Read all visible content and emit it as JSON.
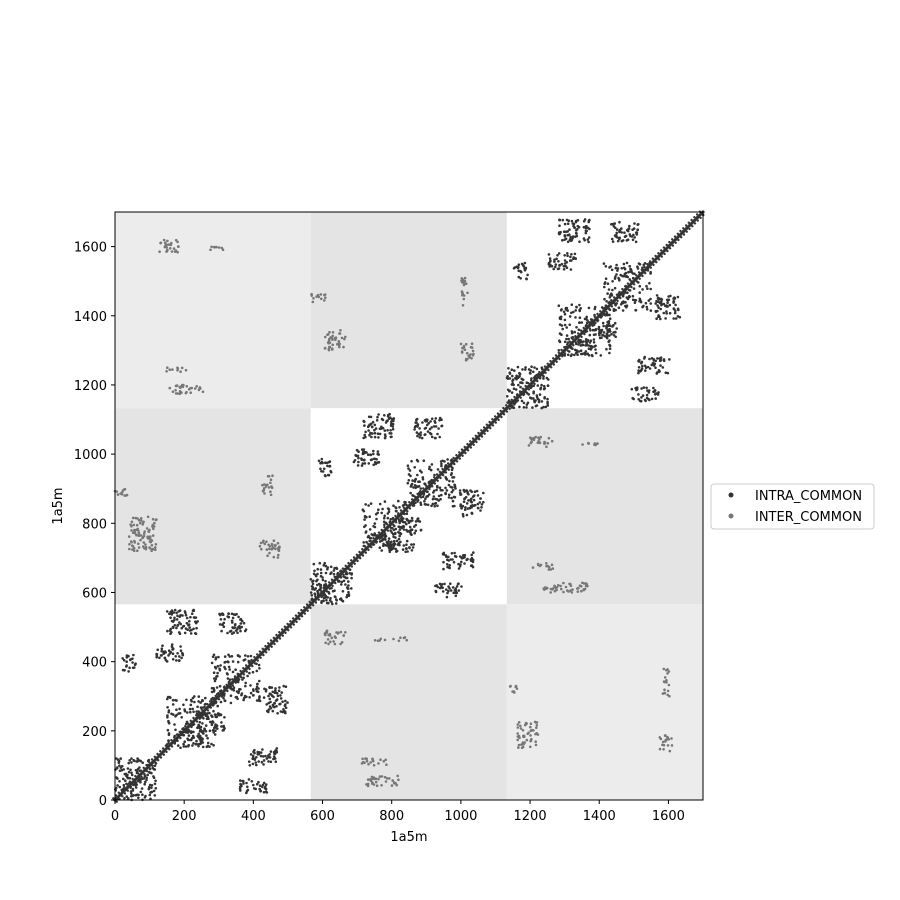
{
  "chart_data": {
    "type": "scatter",
    "title": "",
    "xlabel": "1a5m",
    "ylabel": "1a5m",
    "xlim": [
      0,
      1700
    ],
    "ylim": [
      0,
      1700
    ],
    "xticks": [
      0,
      200,
      400,
      600,
      800,
      1000,
      1200,
      1400,
      1600
    ],
    "yticks": [
      0,
      200,
      400,
      600,
      800,
      1000,
      1200,
      1400,
      1600
    ],
    "grid": false,
    "legend_position": "center-right-outside",
    "blocks": {
      "boundaries": [
        0,
        566,
        1133,
        1700
      ],
      "colors": [
        [
          "#ffffff",
          "#e4e4e4",
          "#ececec"
        ],
        [
          "#e4e4e4",
          "#ffffff",
          "#e4e4e4"
        ],
        [
          "#ececec",
          "#e4e4e4",
          "#ffffff"
        ]
      ]
    },
    "series": [
      {
        "name": "INTRA_COMMON",
        "color": "#333333",
        "diagonal_width": 5,
        "contact_clusters": [
          {
            "x": [
              0,
              120
            ],
            "y": [
              0,
              120
            ]
          },
          {
            "x": [
              150,
              300
            ],
            "y": [
              150,
              300
            ]
          },
          {
            "x": [
              280,
              420
            ],
            "y": [
              280,
              420
            ]
          },
          {
            "x": [
              20,
              60
            ],
            "y": [
              370,
              420
            ]
          },
          {
            "x": [
              120,
              200
            ],
            "y": [
              400,
              450
            ]
          },
          {
            "x": [
              200,
              260
            ],
            "y": [
              150,
              200
            ]
          },
          {
            "x": [
              380,
              470
            ],
            "y": [
              100,
              150
            ]
          },
          {
            "x": [
              360,
              440
            ],
            "y": [
              20,
              60
            ]
          },
          {
            "x": [
              240,
              320
            ],
            "y": [
              200,
              250
            ]
          },
          {
            "x": [
              150,
              240
            ],
            "y": [
              480,
              550
            ]
          },
          {
            "x": [
              300,
              380
            ],
            "y": [
              480,
              540
            ]
          },
          {
            "x": [
              430,
              500
            ],
            "y": [
              250,
              330
            ]
          },
          {
            "x": [
              566,
              686
            ],
            "y": [
              566,
              686
            ]
          },
          {
            "x": [
              716,
              866
            ],
            "y": [
              716,
              866
            ]
          },
          {
            "x": [
              846,
              986
            ],
            "y": [
              846,
              986
            ]
          },
          {
            "x": [
              586,
              626
            ],
            "y": [
              936,
              986
            ]
          },
          {
            "x": [
              686,
              766
            ],
            "y": [
              966,
              1016
            ]
          },
          {
            "x": [
              766,
              826
            ],
            "y": [
              716,
              766
            ]
          },
          {
            "x": [
              946,
              1036
            ],
            "y": [
              666,
              716
            ]
          },
          {
            "x": [
              926,
              1006
            ],
            "y": [
              586,
              626
            ]
          },
          {
            "x": [
              806,
              886
            ],
            "y": [
              766,
              816
            ]
          },
          {
            "x": [
              716,
              806
            ],
            "y": [
              1046,
              1116
            ]
          },
          {
            "x": [
              866,
              946
            ],
            "y": [
              1046,
              1106
            ]
          },
          {
            "x": [
              996,
              1066
            ],
            "y": [
              816,
              896
            ]
          },
          {
            "x": [
              1133,
              1253
            ],
            "y": [
              1133,
              1253
            ]
          },
          {
            "x": [
              1283,
              1433
            ],
            "y": [
              1283,
              1433
            ]
          },
          {
            "x": [
              1413,
              1553
            ],
            "y": [
              1413,
              1553
            ]
          },
          {
            "x": [
              1153,
              1193
            ],
            "y": [
              1503,
              1553
            ]
          },
          {
            "x": [
              1253,
              1333
            ],
            "y": [
              1533,
              1583
            ]
          },
          {
            "x": [
              1333,
              1393
            ],
            "y": [
              1283,
              1333
            ]
          },
          {
            "x": [
              1513,
              1603
            ],
            "y": [
              1233,
              1283
            ]
          },
          {
            "x": [
              1493,
              1573
            ],
            "y": [
              1153,
              1193
            ]
          },
          {
            "x": [
              1373,
              1453
            ],
            "y": [
              1333,
              1383
            ]
          },
          {
            "x": [
              1283,
              1373
            ],
            "y": [
              1613,
              1683
            ]
          },
          {
            "x": [
              1433,
              1513
            ],
            "y": [
              1613,
              1673
            ]
          },
          {
            "x": [
              1563,
              1633
            ],
            "y": [
              1383,
              1463
            ]
          }
        ]
      },
      {
        "name": "INTER_COMMON",
        "color": "#777777",
        "contact_clusters": [
          {
            "x": [
              126,
              186
            ],
            "y": [
              1580,
              1620
            ]
          },
          {
            "x": [
              276,
              316
            ],
            "y": [
              1590,
              1600
            ]
          },
          {
            "x": [
              146,
              206
            ],
            "y": [
              1235,
              1250
            ]
          },
          {
            "x": [
              156,
              256
            ],
            "y": [
              1170,
              1200
            ]
          },
          {
            "x": [
              566,
              611
            ],
            "y": [
              1440,
              1465
            ]
          },
          {
            "x": [
              606,
              666
            ],
            "y": [
              1300,
              1360
            ]
          },
          {
            "x": [
              1001,
              1021
            ],
            "y": [
              1430,
              1510
            ]
          },
          {
            "x": [
              996,
              1041
            ],
            "y": [
              1270,
              1320
            ]
          },
          {
            "x": [
              0,
              50
            ],
            "y": [
              880,
              900
            ]
          },
          {
            "x": [
              40,
              120
            ],
            "y": [
              720,
              820
            ]
          },
          {
            "x": [
              426,
              456
            ],
            "y": [
              880,
              940
            ]
          },
          {
            "x": [
              416,
              476
            ],
            "y": [
              700,
              750
            ]
          },
          {
            "x": [
              1196,
              1266
            ],
            "y": [
              1020,
              1050
            ]
          },
          {
            "x": [
              1346,
              1396
            ],
            "y": [
              1025,
              1035
            ]
          },
          {
            "x": [
              1206,
              1266
            ],
            "y": [
              665,
              685
            ]
          },
          {
            "x": [
              1226,
              1366
            ],
            "y": [
              600,
              630
            ]
          },
          {
            "x": [
              606,
              666
            ],
            "y": [
              450,
              490
            ]
          },
          {
            "x": [
              746,
              846
            ],
            "y": [
              460,
              470
            ]
          },
          {
            "x": [
              706,
              786
            ],
            "y": [
              100,
              120
            ]
          },
          {
            "x": [
              726,
              826
            ],
            "y": [
              40,
              70
            ]
          },
          {
            "x": [
              1133,
              1163
            ],
            "y": [
              310,
              330
            ]
          },
          {
            "x": [
              1163,
              1223
            ],
            "y": [
              150,
              230
            ]
          },
          {
            "x": [
              1583,
              1603
            ],
            "y": [
              300,
              380
            ]
          },
          {
            "x": [
              1573,
              1613
            ],
            "y": [
              140,
              190
            ]
          }
        ]
      }
    ]
  }
}
